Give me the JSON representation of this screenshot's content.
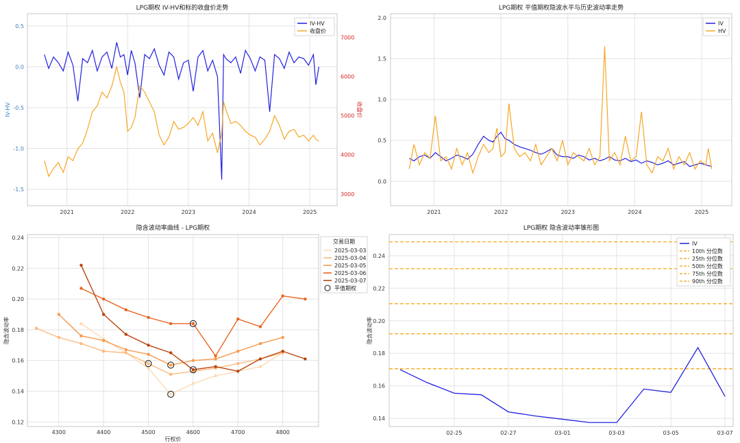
{
  "chart_data": [
    {
      "type": "line",
      "title": "LPG期权 IV-HV和标的收盘价走势",
      "xlabel": "",
      "ylabel": "IV-HV",
      "ylabel_right": "收盘价",
      "x_ticks": [
        "2021",
        "2022",
        "2023",
        "2024",
        "2025"
      ],
      "ylim": [
        -1.7,
        0.65
      ],
      "y_ticks": [
        -1.5,
        -1.0,
        -0.5,
        0.0,
        0.5
      ],
      "ylim_right": [
        2700,
        7600
      ],
      "y_ticks_right": [
        3000,
        4000,
        5000,
        6000,
        7000
      ],
      "x_range": [
        2020.35,
        2025.45
      ],
      "grid": true,
      "legend_position": "top-right",
      "series": [
        {
          "name": "IV-HV",
          "color": "#1f1fe0",
          "axis": "left",
          "x": [
            2020.63,
            2020.7,
            2020.78,
            2020.86,
            2020.94,
            2021.02,
            2021.1,
            2021.18,
            2021.26,
            2021.34,
            2021.42,
            2021.5,
            2021.58,
            2021.66,
            2021.74,
            2021.82,
            2021.88,
            2021.94,
            2022.0,
            2022.06,
            2022.12,
            2022.2,
            2022.28,
            2022.36,
            2022.44,
            2022.52,
            2022.6,
            2022.68,
            2022.76,
            2022.84,
            2022.92,
            2023.0,
            2023.08,
            2023.16,
            2023.24,
            2023.32,
            2023.4,
            2023.48,
            2023.55,
            2023.58,
            2023.62,
            2023.7,
            2023.78,
            2023.86,
            2023.94,
            2024.02,
            2024.1,
            2024.18,
            2024.26,
            2024.34,
            2024.42,
            2024.5,
            2024.58,
            2024.66,
            2024.74,
            2024.82,
            2024.9,
            2024.98,
            2025.06,
            2025.1,
            2025.15
          ],
          "values": [
            0.15,
            -0.02,
            0.12,
            0.05,
            -0.05,
            0.18,
            0.02,
            -0.42,
            0.1,
            0.05,
            0.2,
            -0.05,
            0.12,
            0.18,
            -0.02,
            0.3,
            0.12,
            0.15,
            -0.1,
            0.2,
            0.05,
            -0.38,
            0.15,
            0.1,
            0.22,
            0.02,
            -0.1,
            0.18,
            0.12,
            -0.15,
            0.05,
            0.08,
            -0.3,
            0.12,
            0.2,
            -0.05,
            0.08,
            -0.12,
            -1.38,
            0.15,
            0.1,
            0.05,
            0.12,
            -0.08,
            0.2,
            0.1,
            -0.05,
            0.12,
            0.08,
            -0.55,
            0.15,
            0.1,
            -0.02,
            0.18,
            0.05,
            0.12,
            0.1,
            0.02,
            0.15,
            -0.22,
            0.0
          ]
        },
        {
          "name": "收盘价",
          "color": "#f5a623",
          "axis": "right",
          "x": [
            2020.63,
            2020.7,
            2020.78,
            2020.86,
            2020.94,
            2021.02,
            2021.1,
            2021.18,
            2021.26,
            2021.34,
            2021.42,
            2021.5,
            2021.58,
            2021.66,
            2021.74,
            2021.82,
            2021.88,
            2021.94,
            2022.0,
            2022.06,
            2022.12,
            2022.2,
            2022.28,
            2022.36,
            2022.44,
            2022.52,
            2022.6,
            2022.68,
            2022.76,
            2022.84,
            2022.92,
            2023.0,
            2023.08,
            2023.16,
            2023.24,
            2023.32,
            2023.4,
            2023.48,
            2023.55,
            2023.58,
            2023.62,
            2023.7,
            2023.78,
            2023.86,
            2023.94,
            2024.02,
            2024.1,
            2024.18,
            2024.26,
            2024.34,
            2024.42,
            2024.5,
            2024.58,
            2024.66,
            2024.74,
            2024.82,
            2024.9,
            2024.98,
            2025.06,
            2025.1,
            2025.15
          ],
          "values": [
            3850,
            3450,
            3650,
            3800,
            3550,
            3950,
            3850,
            4150,
            4300,
            4650,
            5100,
            5250,
            5600,
            5450,
            5750,
            6250,
            5850,
            5600,
            4600,
            4700,
            4950,
            5750,
            5600,
            5350,
            5100,
            4500,
            4250,
            4450,
            4850,
            4650,
            4700,
            4800,
            4950,
            4750,
            5100,
            4350,
            4550,
            4050,
            4550,
            5350,
            5150,
            4800,
            4850,
            4750,
            4600,
            4500,
            4450,
            4250,
            4400,
            4600,
            5000,
            4750,
            4400,
            4600,
            4650,
            4450,
            4500,
            4350,
            4500,
            4400,
            4350
          ]
        }
      ]
    },
    {
      "type": "line",
      "title": "LPG期权 平值期权隐波水平与历史波动率走势",
      "xlabel": "",
      "ylabel": "",
      "x_ticks": [
        "2021",
        "2022",
        "2023",
        "2024",
        "2025"
      ],
      "ylim": [
        -0.3,
        2.05
      ],
      "y_ticks": [
        0.0,
        0.5,
        1.0,
        1.5,
        2.0
      ],
      "x_range": [
        2020.35,
        2025.45
      ],
      "grid": true,
      "legend_position": "top-right",
      "series": [
        {
          "name": "IV",
          "color": "#1f1fe0",
          "x": [
            2020.63,
            2020.7,
            2020.78,
            2020.86,
            2020.94,
            2021.02,
            2021.1,
            2021.18,
            2021.26,
            2021.34,
            2021.42,
            2021.5,
            2021.58,
            2021.66,
            2021.74,
            2021.82,
            2021.88,
            2021.94,
            2022.0,
            2022.06,
            2022.12,
            2022.2,
            2022.28,
            2022.36,
            2022.44,
            2022.52,
            2022.6,
            2022.68,
            2022.76,
            2022.84,
            2022.92,
            2023.0,
            2023.08,
            2023.16,
            2023.24,
            2023.32,
            2023.4,
            2023.48,
            2023.55,
            2023.62,
            2023.7,
            2023.78,
            2023.86,
            2023.94,
            2024.02,
            2024.1,
            2024.18,
            2024.26,
            2024.34,
            2024.42,
            2024.5,
            2024.58,
            2024.66,
            2024.74,
            2024.82,
            2024.9,
            2024.98,
            2025.06,
            2025.15
          ],
          "values": [
            0.28,
            0.25,
            0.3,
            0.32,
            0.28,
            0.35,
            0.3,
            0.25,
            0.28,
            0.32,
            0.3,
            0.27,
            0.33,
            0.45,
            0.55,
            0.5,
            0.48,
            0.55,
            0.6,
            0.52,
            0.5,
            0.45,
            0.42,
            0.4,
            0.38,
            0.35,
            0.33,
            0.36,
            0.4,
            0.32,
            0.3,
            0.3,
            0.28,
            0.32,
            0.3,
            0.26,
            0.28,
            0.25,
            0.27,
            0.3,
            0.26,
            0.25,
            0.28,
            0.24,
            0.26,
            0.22,
            0.25,
            0.23,
            0.2,
            0.22,
            0.25,
            0.2,
            0.22,
            0.24,
            0.18,
            0.2,
            0.22,
            0.2,
            0.18
          ]
        },
        {
          "name": "HV",
          "color": "#f5a623",
          "x": [
            2020.63,
            2020.7,
            2020.78,
            2020.86,
            2020.94,
            2021.02,
            2021.1,
            2021.18,
            2021.26,
            2021.34,
            2021.42,
            2021.5,
            2021.58,
            2021.66,
            2021.74,
            2021.82,
            2021.88,
            2021.94,
            2022.0,
            2022.06,
            2022.12,
            2022.2,
            2022.28,
            2022.36,
            2022.44,
            2022.52,
            2022.6,
            2022.68,
            2022.76,
            2022.84,
            2022.92,
            2023.0,
            2023.08,
            2023.16,
            2023.24,
            2023.32,
            2023.4,
            2023.48,
            2023.55,
            2023.62,
            2023.7,
            2023.78,
            2023.86,
            2023.94,
            2024.02,
            2024.1,
            2024.18,
            2024.26,
            2024.34,
            2024.42,
            2024.5,
            2024.58,
            2024.66,
            2024.74,
            2024.82,
            2024.9,
            2024.98,
            2025.06,
            2025.1,
            2025.15
          ],
          "values": [
            0.15,
            0.45,
            0.2,
            0.35,
            0.28,
            0.8,
            0.25,
            0.3,
            0.15,
            0.4,
            0.2,
            0.35,
            0.1,
            0.3,
            0.45,
            0.35,
            0.4,
            0.65,
            0.3,
            0.35,
            0.95,
            0.4,
            0.3,
            0.35,
            0.25,
            0.45,
            0.2,
            0.3,
            0.4,
            0.25,
            0.5,
            0.2,
            0.35,
            0.3,
            0.25,
            0.4,
            0.2,
            0.3,
            1.65,
            0.25,
            0.35,
            0.2,
            0.55,
            0.25,
            0.3,
            0.85,
            0.2,
            0.1,
            0.3,
            0.25,
            0.4,
            0.15,
            0.3,
            0.2,
            0.35,
            0.15,
            0.25,
            0.2,
            0.4,
            0.15
          ]
        }
      ]
    },
    {
      "type": "line",
      "title": "隐含波动率曲线 - LPG期权",
      "xlabel": "行权价",
      "ylabel": "隐含波动率",
      "x_ticks": [
        4300,
        4400,
        4500,
        4600,
        4700,
        4800
      ],
      "xlim": [
        4230,
        4880
      ],
      "ylim": [
        0.117,
        0.242
      ],
      "y_ticks": [
        0.12,
        0.14,
        0.16,
        0.18,
        0.2,
        0.22,
        0.24
      ],
      "grid": true,
      "legend_title": "交易日期",
      "legend_position": "outside-right",
      "atm_legend": "平值期权",
      "series": [
        {
          "name": "2025-03-03",
          "color": "#fddbb5",
          "x": [
            4350,
            4400,
            4450,
            4500,
            4550,
            4600,
            4650,
            4700,
            4750,
            4800
          ],
          "values": [
            0.184,
            0.174,
            0.165,
            0.155,
            0.138,
            0.145,
            0.15,
            0.153,
            0.156,
            0.165
          ],
          "atm": [
            4550,
            0.138
          ]
        },
        {
          "name": "2025-03-04",
          "color": "#fdb97d",
          "x": [
            4250,
            4300,
            4350,
            4400,
            4450,
            4500,
            4550,
            4600,
            4650,
            4700,
            4750,
            4800
          ],
          "values": [
            0.181,
            0.175,
            0.171,
            0.166,
            0.165,
            0.158,
            0.151,
            0.153,
            0.155,
            0.158,
            0.161,
            0.165
          ],
          "atm": [
            4500,
            0.158
          ]
        },
        {
          "name": "2025-03-05",
          "color": "#f7994c",
          "x": [
            4300,
            4350,
            4400,
            4450,
            4500,
            4550,
            4600,
            4650,
            4700,
            4750,
            4800
          ],
          "values": [
            0.19,
            0.176,
            0.173,
            0.167,
            0.164,
            0.157,
            0.16,
            0.161,
            0.166,
            0.171,
            0.175
          ],
          "atm": [
            4550,
            0.157
          ]
        },
        {
          "name": "2025-03-06",
          "color": "#e8641e",
          "x": [
            4350,
            4400,
            4450,
            4500,
            4550,
            4600,
            4650,
            4700,
            4750,
            4800,
            4850
          ],
          "values": [
            0.207,
            0.2,
            0.193,
            0.188,
            0.184,
            0.184,
            0.163,
            0.187,
            0.182,
            0.202,
            0.2
          ],
          "atm": [
            4600,
            0.184
          ]
        },
        {
          "name": "2025-03-07",
          "color": "#b84410",
          "x": [
            4350,
            4400,
            4450,
            4500,
            4550,
            4600,
            4650,
            4700,
            4750,
            4800,
            4850
          ],
          "values": [
            0.222,
            0.19,
            0.177,
            0.17,
            0.165,
            0.154,
            0.156,
            0.153,
            0.161,
            0.166,
            0.161
          ],
          "atm": [
            4600,
            0.154
          ]
        }
      ]
    },
    {
      "type": "line",
      "title": "LPG期权 隐含波动率锥形图",
      "xlabel": "",
      "ylabel": "隐含波动率",
      "x_ticks": [
        "02-25",
        "02-27",
        "03-01",
        "03-03",
        "03-05",
        "03-07"
      ],
      "x_tick_days": [
        -6,
        -4,
        -2,
        0,
        2,
        4
      ],
      "x_range_days": [
        -8.4,
        4.3
      ],
      "ylim": [
        0.135,
        0.253
      ],
      "y_ticks": [
        0.14,
        0.16,
        0.18,
        0.2,
        0.22,
        0.24
      ],
      "grid": true,
      "legend_position": "top-right",
      "series": [
        {
          "name": "IV",
          "color": "#1f1fe0",
          "x_days": [
            -8,
            -7,
            -6,
            -5,
            -4,
            -3,
            -2,
            -1,
            0,
            1,
            2,
            3,
            4
          ],
          "values": [
            0.17,
            0.162,
            0.1555,
            0.1545,
            0.144,
            0.1415,
            0.1395,
            0.1375,
            0.1375,
            0.158,
            0.156,
            0.1835,
            0.1535
          ]
        }
      ],
      "percentiles": [
        {
          "name": "10th 分位数",
          "value": 0.1705
        },
        {
          "name": "25th 分位数",
          "value": 0.192
        },
        {
          "name": "50th 分位数",
          "value": 0.2105
        },
        {
          "name": "75th 分位数",
          "value": 0.232
        },
        {
          "name": "90th 分位数",
          "value": 0.2485
        }
      ],
      "percentile_color": "#f5a000"
    }
  ]
}
